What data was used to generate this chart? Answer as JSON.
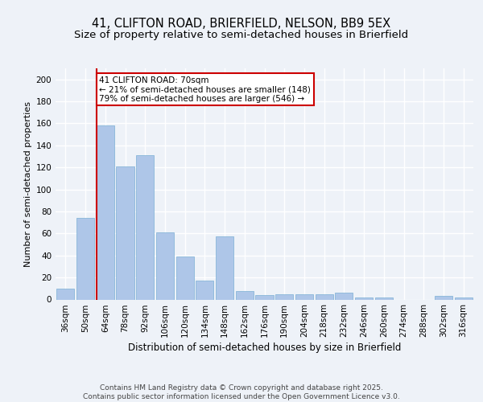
{
  "title_line1": "41, CLIFTON ROAD, BRIERFIELD, NELSON, BB9 5EX",
  "title_line2": "Size of property relative to semi-detached houses in Brierfield",
  "xlabel": "Distribution of semi-detached houses by size in Brierfield",
  "ylabel": "Number of semi-detached properties",
  "categories": [
    "36sqm",
    "50sqm",
    "64sqm",
    "78sqm",
    "92sqm",
    "106sqm",
    "120sqm",
    "134sqm",
    "148sqm",
    "162sqm",
    "176sqm",
    "190sqm",
    "204sqm",
    "218sqm",
    "232sqm",
    "246sqm",
    "260sqm",
    "274sqm",
    "288sqm",
    "302sqm",
    "316sqm"
  ],
  "values": [
    10,
    74,
    158,
    121,
    131,
    61,
    39,
    17,
    57,
    8,
    4,
    5,
    5,
    5,
    6,
    2,
    2,
    0,
    0,
    3,
    2
  ],
  "bar_color": "#aec6e8",
  "bar_edge_color": "#7bafd4",
  "property_bin_index": 2,
  "vline_x": 1.55,
  "annotation_text": "41 CLIFTON ROAD: 70sqm\n← 21% of semi-detached houses are smaller (148)\n79% of semi-detached houses are larger (546) →",
  "annotation_box_color": "#ffffff",
  "annotation_box_edge": "#cc0000",
  "vline_color": "#cc0000",
  "ylim": [
    0,
    210
  ],
  "yticks": [
    0,
    20,
    40,
    60,
    80,
    100,
    120,
    140,
    160,
    180,
    200
  ],
  "background_color": "#eef2f8",
  "grid_color": "#ffffff",
  "footer_text": "Contains HM Land Registry data © Crown copyright and database right 2025.\nContains public sector information licensed under the Open Government Licence v3.0.",
  "title_fontsize": 10.5,
  "subtitle_fontsize": 9.5,
  "xlabel_fontsize": 8.5,
  "ylabel_fontsize": 8,
  "tick_fontsize": 7.5,
  "annotation_fontsize": 7.5,
  "footer_fontsize": 6.5
}
